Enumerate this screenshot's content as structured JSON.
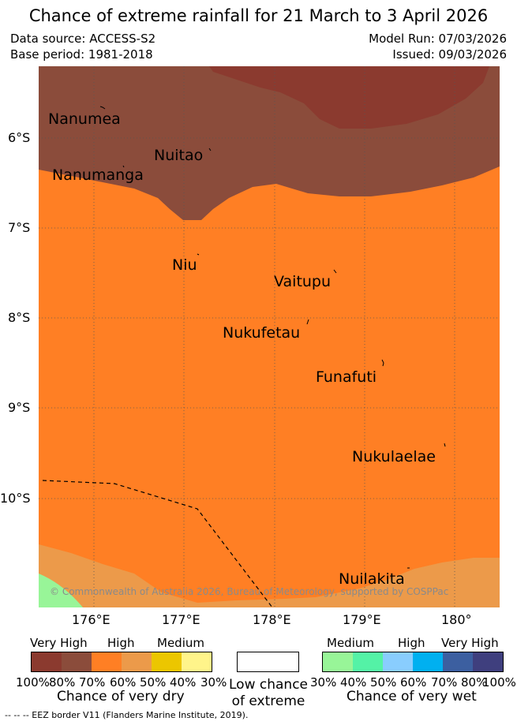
{
  "title": "Chance of extreme rainfall for 21 March to 3 April 2026",
  "meta": {
    "data_source": "Data source: ACCESS-S2",
    "base_period": "Base period: 1981-2018",
    "model_run": "Model Run: 07/03/2026",
    "issued": "Issued: 09/03/2026"
  },
  "places": [
    "Nanumea",
    "Nuitao",
    "Nanumanga",
    "Niu",
    "Vaitupu",
    "Nukufetau",
    "Funafuti",
    "Nukulaelae",
    "Nuilakita"
  ],
  "lat_labels": [
    "6°S",
    "7°S",
    "8°S",
    "9°S",
    "10°S"
  ],
  "lon_labels": [
    "176°E",
    "177°E",
    "178°E",
    "179°E",
    "180°"
  ],
  "copyright": "© Commonwealth of Australia 2026, Bureau of Meteorology, supported by COSPPac",
  "legend": {
    "dry": {
      "group_labels": [
        "Very High",
        "High",
        "Medium"
      ],
      "tick_labels": [
        "100%",
        "80%",
        "70%",
        "60%",
        "50%",
        "40%",
        "30%"
      ],
      "colors": [
        "#8b3a2f",
        "#8b4c3b",
        "#ff7f24",
        "#ec9a4a",
        "#ecc600",
        "#fff48a"
      ],
      "caption": "Chance of very dry"
    },
    "low": {
      "caption_line1": "Low chance",
      "caption_line2": "of extreme"
    },
    "wet": {
      "group_labels": [
        "Medium",
        "High",
        "Very High"
      ],
      "tick_labels": [
        "30%",
        "40%",
        "50%",
        "60%",
        "70%",
        "80%",
        "100%"
      ],
      "colors": [
        "#98f598",
        "#54f2a6",
        "#89cdfe",
        "#00b0f0",
        "#3c5fa0",
        "#3f3f7e"
      ],
      "caption": "Chance of very wet"
    }
  },
  "eez_note": "-- -- -- EEZ border V11 (Flanders Marine Institute, 2019)."
}
